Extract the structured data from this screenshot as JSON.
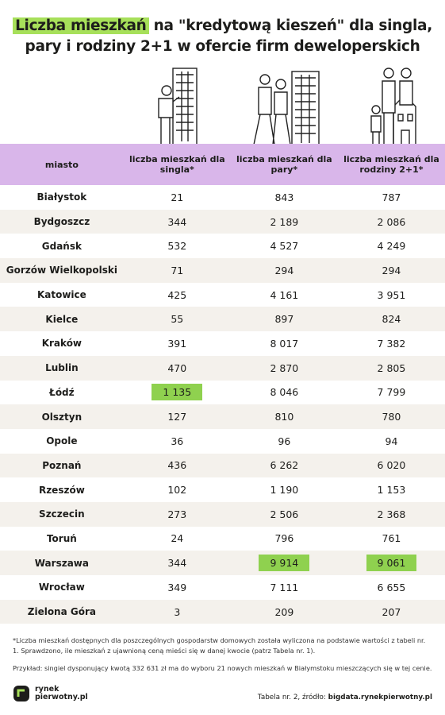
{
  "header": {
    "title_highlight": "Liczba mieszkań",
    "title_line1": "na \"kredytową kieszeń\" dla singla,",
    "title_line2": "pary i rodziny 2+1 w ofercie firm deweloperskich"
  },
  "table": {
    "columns": [
      "miasto",
      "liczba mieszkań dla singla*",
      "liczba mieszkań dla pary*",
      "liczba mieszkań dla rodziny 2+1*"
    ],
    "rows": [
      [
        "Białystok",
        "21",
        "843",
        "787"
      ],
      [
        "Bydgoszcz",
        "344",
        "2 189",
        "2 086"
      ],
      [
        "Gdańsk",
        "532",
        "4 527",
        "4 249"
      ],
      [
        "Gorzów Wielkopolski",
        "71",
        "294",
        "294"
      ],
      [
        "Katowice",
        "425",
        "4 161",
        "3 951"
      ],
      [
        "Kielce",
        "55",
        "897",
        "824"
      ],
      [
        "Kraków",
        "391",
        "8 017",
        "7 382"
      ],
      [
        "Lublin",
        "470",
        "2 870",
        "2 805"
      ],
      [
        "Łódź",
        "1 135",
        "8 046",
        "7 799"
      ],
      [
        "Olsztyn",
        "127",
        "810",
        "780"
      ],
      [
        "Opole",
        "36",
        "96",
        "94"
      ],
      [
        "Poznań",
        "436",
        "6 262",
        "6 020"
      ],
      [
        "Rzeszów",
        "102",
        "1 190",
        "1 153"
      ],
      [
        "Szczecin",
        "273",
        "2 506",
        "2 368"
      ],
      [
        "Toruń",
        "24",
        "796",
        "761"
      ],
      [
        "Warszawa",
        "344",
        "9 914",
        "9 061"
      ],
      [
        "Wrocław",
        "349",
        "7 111",
        "6 655"
      ],
      [
        "Zielona Góra",
        "3",
        "209",
        "207"
      ]
    ],
    "highlighted_cells": [
      [
        8,
        1
      ],
      [
        15,
        2
      ],
      [
        15,
        3
      ]
    ],
    "highlight_color": "#8fd14f"
  },
  "footer": {
    "note": "*Liczba mieszkań dostępnych dla poszczególnych gospodarstw domowych została wyliczona na podstawie wartości z tabeli nr. 1. Sprawdzono, ile mieszkań z ujawnioną ceną mieści się w danej kwocie (patrz Tabela nr. 1).",
    "example": "Przykład: singiel dysponujący kwotą 332 631 zł ma do wyboru 21 nowych mieszkań w Białymstoku mieszczących się w tej cenie.",
    "logo_line1": "rynek",
    "logo_line2": "pierwotny.pl",
    "source_prefix": "Tabela nr. 2, źródło:",
    "source_link": "bigdata.rynekpierwotny.pl"
  }
}
